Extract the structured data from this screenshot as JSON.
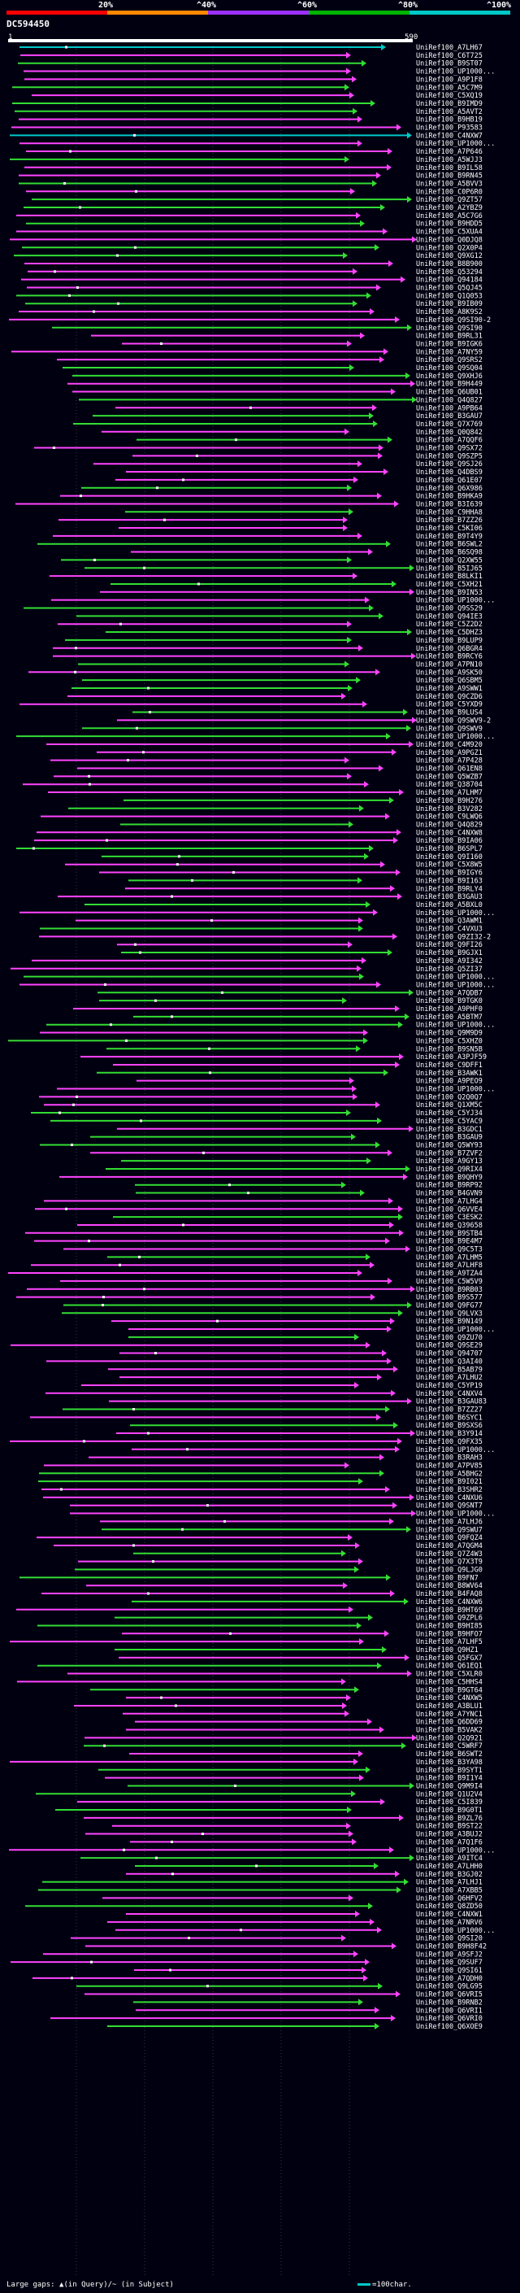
{
  "legend": {
    "ticks": [
      "20%",
      "^40%",
      "^60%",
      "^80%",
      "^100%"
    ],
    "colors": [
      "#ff0000",
      "#ff8800",
      "#9b30ff",
      "#00b400",
      "#00c8c8"
    ]
  },
  "query": {
    "name": "DC594450",
    "start": "1",
    "end": "590"
  },
  "colors": {
    "pink": "#ff44ff",
    "green": "#33dd33",
    "cyan": "#00c8c8",
    "query_bar": "#ffffff"
  },
  "hits": [
    "UniRef100_A7LH67",
    "UniRef100_C6T725",
    "UniRef100_B9ST07",
    "UniRef100_UP1000...",
    "UniRef100_A9P1F8",
    "UniRef100_A5C7M9",
    "UniRef100_C5XQ19",
    "UniRef100_B9IMD9",
    "UniRef100_A5AVT2",
    "UniRef100_B9HB19",
    "UniRef100_P93583",
    "UniRef100_C4NXW7",
    "UniRef100_UP1000...",
    "UniRef100_A7P646",
    "UniRef100_A5WJJ3",
    "UniRef100_B9IL58",
    "UniRef100_B9RN45",
    "UniRef100_A5BVV3",
    "UniRef100_C0P6R0",
    "UniRef100_Q9ZT57",
    "UniRef100_A2YBZ9",
    "UniRef100_A5C7G6",
    "UniRef100_B9HDD5",
    "UniRef100_C5XUA4",
    "UniRef100_Q0DJQ8",
    "UniRef100_Q2X0P4",
    "UniRef100_Q9XG12",
    "UniRef100_B8B900",
    "UniRef100_Q53294",
    "UniRef100_Q94184",
    "UniRef100_Q5QJ45",
    "UniRef100_Q1Q053",
    "UniRef100_B9IB09",
    "UniRef100_A8K9S2",
    "UniRef100_Q9SI90-2",
    "UniRef100_Q9SI90",
    "UniRef100_B9RL31",
    "UniRef100_B9IGK6",
    "UniRef100_A7NY59",
    "UniRef100_Q9SRS2",
    "UniRef100_Q9SQ04",
    "UniRef100_Q9XHJ6",
    "UniRef100_B9H449",
    "UniRef100_Q6UB01",
    "UniRef100_Q4Q827",
    "UniRef100_A9PB64",
    "UniRef100_B3GAU7",
    "UniRef100_Q7X769",
    "UniRef100_Q0Q842",
    "UniRef100_A7QQF6",
    "UniRef100_Q9SX72",
    "UniRef100_Q9SZP5",
    "UniRef100_Q9SJ26",
    "UniRef100_Q4DBS9",
    "UniRef100_Q61E07",
    "UniRef100_Q6X986",
    "UniRef100_B9HKA9",
    "UniRef100_B3I639",
    "UniRef100_C9HHA8",
    "UniRef100_B7ZZ26",
    "UniRef100_C5KI06",
    "UniRef100_B9T4Y9",
    "UniRef100_B6SWL2",
    "UniRef100_B6SQ98",
    "UniRef100_Q2XW55",
    "UniRef100_B5IJ65",
    "UniRef100_B8LKI1",
    "UniRef100_C5XH21",
    "UniRef100_B9IN53",
    "UniRef100_UP1000...",
    "UniRef100_Q9SS29",
    "UniRef100_Q94IE3",
    "UniRef100_C5Z2D2",
    "UniRef100_C5DHZ3",
    "UniRef100_B9LUP9",
    "UniRef100_Q6BGR4",
    "UniRef100_B9RCY6",
    "UniRef100_A7PN10",
    "UniRef100_A9SK50",
    "UniRef100_Q6SBM5",
    "UniRef100_A9SWW1",
    "UniRef100_Q9CZD6",
    "UniRef100_C5YXD9",
    "UniRef100_B9LUS4",
    "UniRef100_Q9SWV9-2",
    "UniRef100_Q9SWV9",
    "UniRef100_UP1000...",
    "UniRef100_C4M920",
    "UniRef100_A9PGZ1",
    "UniRef100_A7P428",
    "UniRef100_Q61EN8",
    "UniRef100_Q5WZB7",
    "UniRef100_Q38704",
    "UniRef100_A7LHM7",
    "UniRef100_B9H276",
    "UniRef100_B3V282",
    "UniRef100_C9LWQ6",
    "UniRef100_Q4Q829",
    "UniRef100_C4NXW8",
    "UniRef100_B9IA06",
    "UniRef100_B6SPL7",
    "UniRef100_Q9I160",
    "UniRef100_C5X8W5",
    "UniRef100_B9IGY6",
    "UniRef100_B9I163",
    "UniRef100_B9RLY4",
    "UniRef100_B3GAU3",
    "UniRef100_A5BXL0",
    "UniRef100_UP1000...",
    "UniRef100_Q3AWM1",
    "UniRef100_C4VXU3",
    "UniRef100_Q9ZI32-2",
    "UniRef100_Q9FI26",
    "UniRef100_B9GJX1",
    "UniRef100_A9I342",
    "UniRef100_Q5ZI37",
    "UniRef100_UP1000...",
    "UniRef100_UP1000...",
    "UniRef100_A7QDB7",
    "UniRef100_B9TGK0",
    "UniRef100_A9PHF0",
    "UniRef100_A5BTM7",
    "UniRef100_UP1000...",
    "UniRef100_Q9M9D9",
    "UniRef100_C5XHZ0",
    "UniRef100_B9SN5B",
    "UniRef100_A3PJF59",
    "UniRef100_C9DFF1",
    "UniRef100_B3AWK1",
    "UniRef100_A9PEO9",
    "UniRef100_UP1000...",
    "UniRef100_Q2Q0Q7",
    "UniRef100_Q1XM5C",
    "UniRef100_C5YJ34",
    "UniRef100_C5YAC9",
    "UniRef100_B3GDC1",
    "UniRef100_B3GAU9",
    "UniRef100_Q5WY93",
    "UniRef100_B7ZVF2",
    "UniRef100_A9GY13",
    "UniRef100_Q9RIX4",
    "UniRef100_B9QHY9",
    "UniRef100_B9RP92",
    "UniRef100_B4GVN9",
    "UniRef100_A7LHG4",
    "UniRef100_Q6VVE4",
    "UniRef100_C3ESK2",
    "UniRef100_Q39658",
    "UniRef100_B9STB4",
    "UniRef100_B9E4M7",
    "UniRef100_Q9C5T3",
    "UniRef100_A7LHM5",
    "UniRef100_A7LHF8",
    "UniRef100_A9TZA4",
    "UniRef100_C5W5V9",
    "UniRef100_B9RB03",
    "UniRef100_B9S577",
    "UniRef100_Q9FG77",
    "UniRef100_Q9LVX3",
    "UniRef100_B9N149",
    "UniRef100_UP1000...",
    "UniRef100_Q9ZU70",
    "UniRef100_Q9SE29",
    "UniRef100_Q94707",
    "UniRef100_Q3AI40",
    "UniRef100_B5AB79",
    "UniRef100_A7LHU2",
    "UniRef100_C5YP19",
    "UniRef100_C4NXV4",
    "UniRef100_B3GAU83",
    "UniRef100_B7ZZ27",
    "UniRef100_B6SYC1",
    "UniRef100_B9SXS6",
    "UniRef100_B3Y914",
    "UniRef100_Q9FX35",
    "UniRef100_UP1000...",
    "UniRef100_B3RAH3",
    "UniRef100_A7PV85",
    "UniRef100_A5BHG2",
    "UniRef100_B9I021",
    "UniRef100_B3SHR2",
    "UniRef100_C4NXU6",
    "UniRef100_Q9SNT7",
    "UniRef100_UP1000...",
    "UniRef100_A7LHJ6",
    "UniRef100_Q9SWU7",
    "UniRef100_Q9FQZ4",
    "UniRef100_A7QGM4",
    "UniRef100_Q7Z4W3",
    "UniRef100_Q7X3T9",
    "UniRef100_Q9LJG0",
    "UniRef100_B9FN7",
    "UniRef100_B8WV64",
    "UniRef100_B4FAQ8",
    "UniRef100_C4NXW6",
    "UniRef100_B9HT69",
    "UniRef100_Q9ZPL6",
    "UniRef100_B9HI85",
    "UniRef100_B9HFO7",
    "UniRef100_A7LHF5",
    "UniRef100_Q9HZ1",
    "UniRef100_Q5FGX7",
    "UniRef100_Q61EQ1",
    "UniRef100_C5XLR0",
    "UniRef100_C5HHS4",
    "UniRef100_B9GT64",
    "UniRef100_C4NXW5",
    "UniRef100_A3BLU1",
    "UniRef100_A7YNC1",
    "UniRef100_Q6DD69",
    "UniRef100_B5VAK2",
    "UniRef100_Q2Q921",
    "UniRef100_C5WRF7",
    "UniRef100_B6SWT2",
    "UniRef100_B3YA98",
    "UniRef100_B9SYT1",
    "UniRef100_B9I1Y4",
    "UniRef100_Q9M9I4",
    "UniRef100_Q1U2V4",
    "UniRef100_C5I839",
    "UniRef100_B9G0T1",
    "UniRef100_B9ZL76",
    "UniRef100_B9ST22",
    "UniRef100_A3BUJ2",
    "UniRef100_A7Q1F6",
    "UniRef100_UP1000...",
    "UniRef100_A9ITC4",
    "UniRef100_A7LHH0",
    "UniRef100_B3GJ02",
    "UniRef100_A7LHJ1",
    "UniRef100_A7XBB5",
    "UniRef100_Q6HFV2",
    "UniRef100_Q8ZD50",
    "UniRef100_C4NXW1",
    "UniRef100_A7NRV6",
    "UniRef100_UP1000...",
    "UniRef100_Q9SI20",
    "UniRef100_B9H8F42",
    "UniRef100_A9SFJ2",
    "UniRef100_Q9SUF7",
    "UniRef100_Q9SI61",
    "UniRef100_A7QDH0",
    "UniRef100_Q9LG95",
    "UniRef100_Q6VRI5",
    "UniRef100_B9RNB2",
    "UniRef100_Q6VRI1",
    "UniRef100_Q6VRI0",
    "UniRef100_Q6XOE9"
  ],
  "footer": {
    "text": "Large gaps: ▲(in Query)/~ (in Subject)",
    "scale": "=100char."
  }
}
